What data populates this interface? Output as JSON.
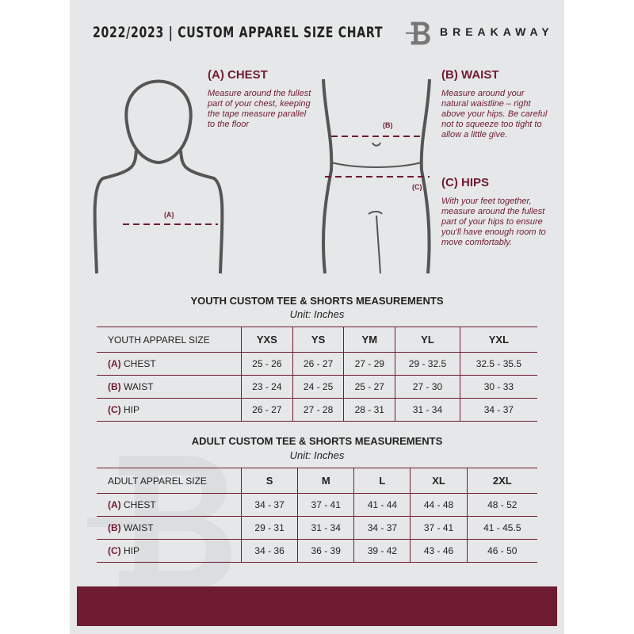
{
  "header": {
    "title": "2022/2023 | CUSTOM APPAREL SIZE CHART",
    "brand": "BREAKAWAY",
    "logo_letter": "B"
  },
  "guide": {
    "chest": {
      "heading": "(A) CHEST",
      "text": "Measure around the fullest part of your chest, keeping the tape measure parallel to the floor",
      "marker": "(A)"
    },
    "waist": {
      "heading": "(B) WAIST",
      "text": "Measure around your natural waistline – right above your hips. Be careful not to squeeze too tight to allow a little give.",
      "marker": "(B)"
    },
    "hips": {
      "heading": "(C) HIPS",
      "text": "With your feet together, measure around the fullest part of your hips to ensure you'll have enough room to move comfortably.",
      "marker": "(C)"
    }
  },
  "youth": {
    "title": "YOUTH CUSTOM TEE & SHORTS MEASUREMENTS",
    "unit": "Unit: Inches",
    "size_label": "YOUTH APPAREL SIZE",
    "sizes": [
      "YXS",
      "YS",
      "YM",
      "YL",
      "YXL"
    ],
    "rows": [
      {
        "code": "(A)",
        "name": "CHEST",
        "values": [
          "25 - 26",
          "26 - 27",
          "27 - 29",
          "29 - 32.5",
          "32.5 - 35.5"
        ]
      },
      {
        "code": "(B)",
        "name": "WAIST",
        "values": [
          "23 - 24",
          "24 - 25",
          "25 - 27",
          "27 - 30",
          "30 - 33"
        ]
      },
      {
        "code": "(C)",
        "name": "HIP",
        "values": [
          "26 - 27",
          "27 - 28",
          "28 - 31",
          "31 - 34",
          "34 - 37"
        ]
      }
    ]
  },
  "adult": {
    "title": "ADULT CUSTOM TEE & SHORTS MEASUREMENTS",
    "unit": "Unit: Inches",
    "size_label": "ADULT APPAREL SIZE",
    "sizes": [
      "S",
      "M",
      "L",
      "XL",
      "2XL"
    ],
    "rows": [
      {
        "code": "(A)",
        "name": "CHEST",
        "values": [
          "34 - 37",
          "37 - 41",
          "41 - 44",
          "44 - 48",
          "48 - 52"
        ]
      },
      {
        "code": "(B)",
        "name": "WAIST",
        "values": [
          "29 - 31",
          "31 - 34",
          "34 - 37",
          "37 - 41",
          "41 - 45.5"
        ]
      },
      {
        "code": "(C)",
        "name": "HIP",
        "values": [
          "34 - 36",
          "36 - 39",
          "39 - 42",
          "43 - 46",
          "46 - 50"
        ]
      }
    ]
  },
  "colors": {
    "accent": "#6f1c32",
    "background": "#e6e7e8"
  }
}
